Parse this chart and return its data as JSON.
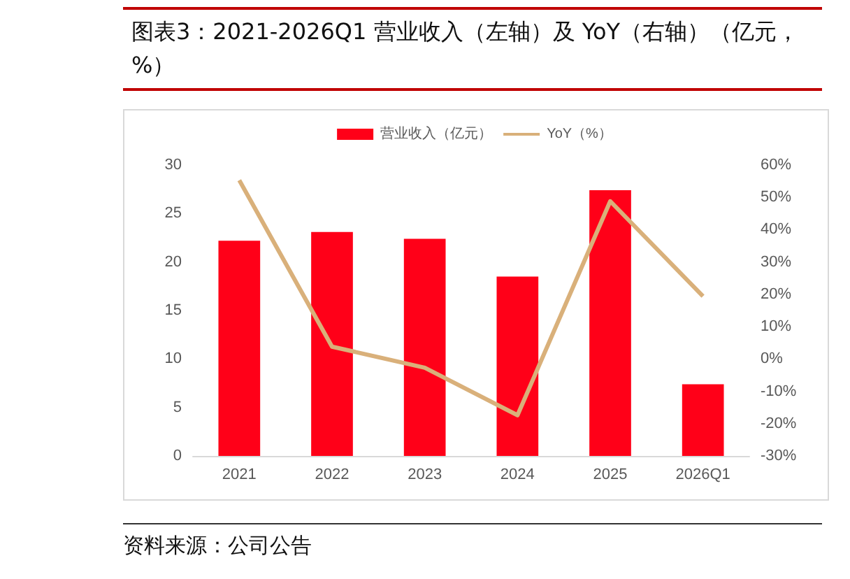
{
  "chart_data": {
    "type": "bar",
    "title": "图表3：2021-2026Q1 营业收入（左轴）及 YoY（右轴）（亿元，%）",
    "categories": [
      "2021",
      "2022",
      "2023",
      "2024",
      "2025",
      "2026Q1"
    ],
    "series": [
      {
        "name": "营业收入（亿元）",
        "color": "#ff0018",
        "values": [
          22.2,
          23.1,
          22.4,
          18.5,
          27.4,
          7.4
        ]
      },
      {
        "name": "YoY（%）",
        "type": "line",
        "axis": "y2",
        "color": "#d9b07a",
        "marker": "none",
        "values": [
          55.3,
          3.8,
          -2.7,
          -17.4,
          48.8,
          19.4
        ]
      }
    ],
    "ylim": [
      0,
      30
    ],
    "yticks": [
      0,
      5,
      10,
      15,
      20,
      25,
      30
    ],
    "y2lim": [
      -30,
      60
    ],
    "y2ticks": [
      {
        "value": -30,
        "label": "-30%"
      },
      {
        "value": -20,
        "label": "-20%"
      },
      {
        "value": -10,
        "label": "-10%"
      },
      {
        "value": 0,
        "label": "0%"
      },
      {
        "value": 10,
        "label": "10%"
      },
      {
        "value": 20,
        "label": "20%"
      },
      {
        "value": 30,
        "label": "30%"
      },
      {
        "value": 40,
        "label": "40%"
      },
      {
        "value": 50,
        "label": "50%"
      },
      {
        "value": 60,
        "label": "60%"
      }
    ],
    "grid": false,
    "legend": "top",
    "annotations": [
      "资料来源：公司公告"
    ]
  }
}
